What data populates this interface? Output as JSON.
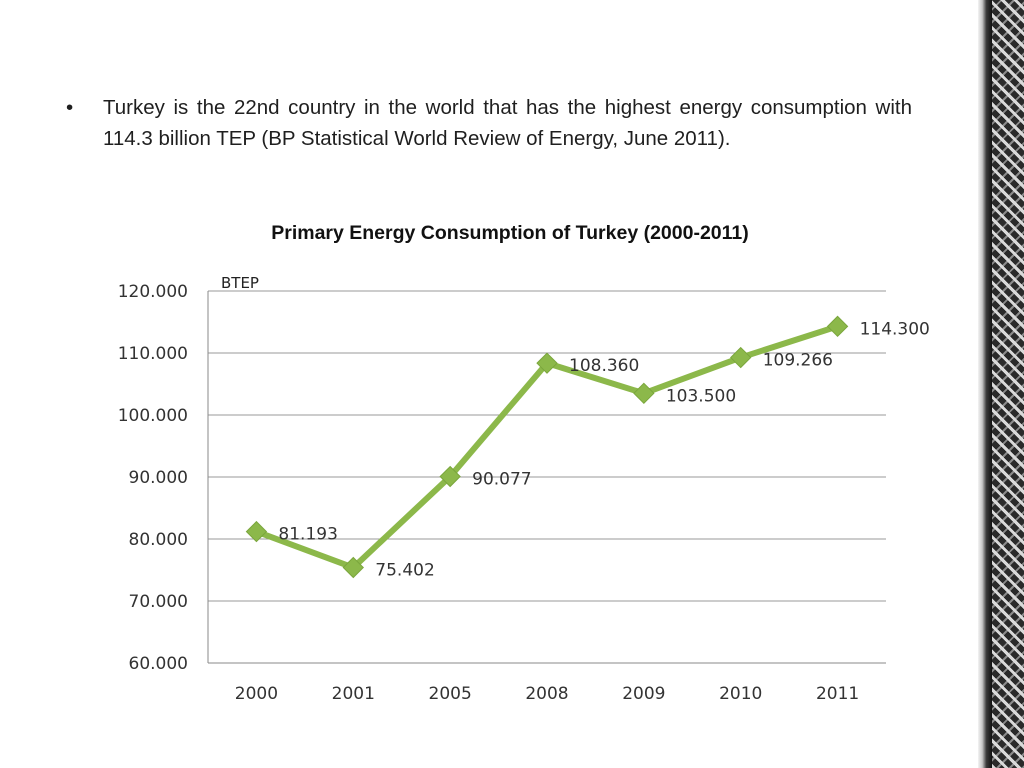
{
  "slide": {
    "bullet_symbol": "•",
    "bullet_text": "Turkey is the 22nd country in  the world that has the highest energy consumption with 114.3 billion TEP (BP Statistical World Review of Energy, June 2011)."
  },
  "chart_data": {
    "type": "line",
    "title": "Primary Energy Consumption of Turkey (2000-2011)",
    "unit_label": "BTEP",
    "categories": [
      "2000",
      "2001",
      "2005",
      "2008",
      "2009",
      "2010",
      "2011"
    ],
    "values": [
      81.193,
      75.402,
      90.077,
      108.36,
      103.5,
      109.266,
      114.3
    ],
    "data_labels": [
      "81.193",
      "75.402",
      "90.077",
      "108.360",
      "103.500",
      "109.266",
      "114.300"
    ],
    "ylim": [
      60,
      120
    ],
    "y_ticks": [
      120,
      110,
      100,
      90,
      80,
      70,
      60
    ],
    "y_tick_labels": [
      "120.000",
      "110.000",
      "100.000",
      "90.000",
      "80.000",
      "70.000",
      "60.000"
    ],
    "xlabel": "",
    "ylabel": "",
    "grid": true,
    "legend": "none",
    "line_color": "#8cb84a",
    "marker": "diamond"
  }
}
